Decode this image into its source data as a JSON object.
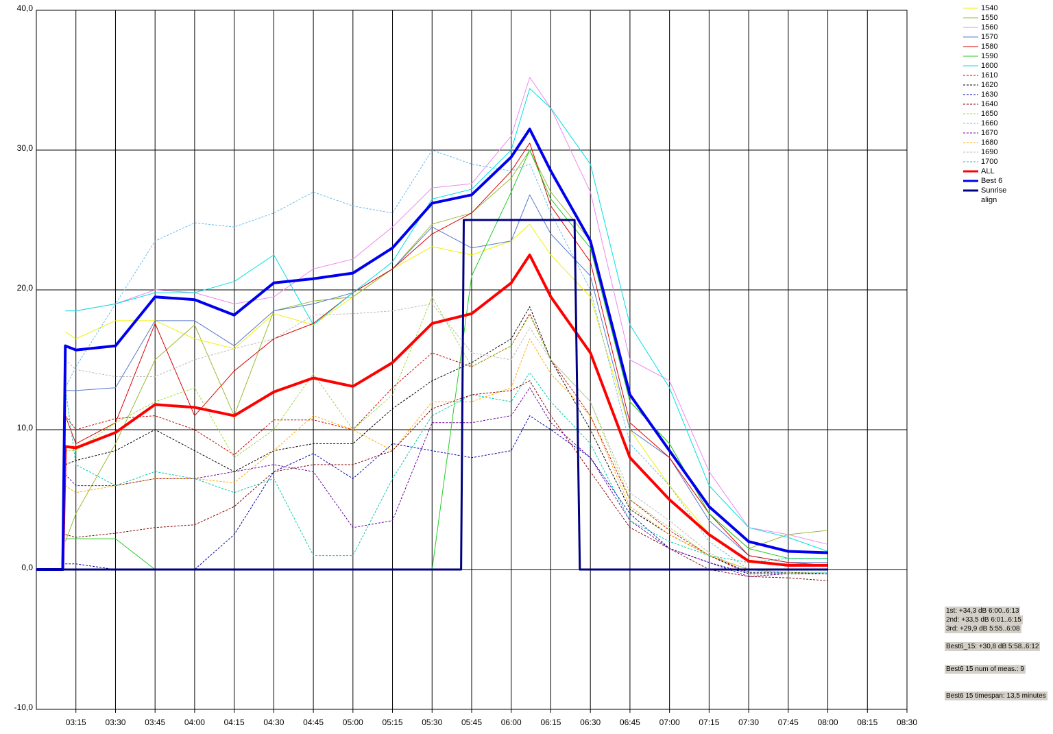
{
  "chart_data": {
    "type": "line",
    "x": [
      "03:00",
      "03:10",
      "03:11",
      "03:15",
      "03:30",
      "03:45",
      "04:00",
      "04:15",
      "04:30",
      "04:45",
      "05:00",
      "05:15",
      "05:30",
      "05:45",
      "06:00",
      "06:07",
      "06:15",
      "06:30",
      "06:45",
      "07:00",
      "07:15",
      "07:30",
      "07:45",
      "08:00"
    ],
    "xlim": [
      "03:00",
      "08:30"
    ],
    "xticks": [
      "03:15",
      "03:30",
      "03:45",
      "04:00",
      "04:15",
      "04:30",
      "04:45",
      "05:00",
      "05:15",
      "05:30",
      "05:45",
      "06:00",
      "06:15",
      "06:30",
      "06:45",
      "07:00",
      "07:15",
      "07:30",
      "07:45",
      "08:00",
      "08:15",
      "08:30"
    ],
    "ylim": [
      -10,
      40
    ],
    "yticks": [
      {
        "value": -10,
        "label": "-10,0"
      },
      {
        "value": 0,
        "label": "0,0"
      },
      {
        "value": 10,
        "label": "10,0"
      },
      {
        "value": 20,
        "label": "20,0"
      },
      {
        "value": 30,
        "label": "30,0"
      },
      {
        "value": 40,
        "label": "40,0"
      }
    ],
    "grid": true,
    "series": [
      {
        "name": "1540",
        "color": "#f0f000",
        "values": [
          null,
          null,
          17,
          16.5,
          17.8,
          17.8,
          16.5,
          15.8,
          18.3,
          17.5,
          19.5,
          21.5,
          23.1,
          22.5,
          23.5,
          24.7,
          22.5,
          19.5,
          10,
          6,
          2.5,
          0.5,
          0.3,
          0.3
        ]
      },
      {
        "name": "1550",
        "color": "#99bb33",
        "values": [
          null,
          null,
          2,
          4,
          9,
          15,
          17.5,
          11,
          18.5,
          19.2,
          19.5,
          21.5,
          24.7,
          25.5,
          28,
          30,
          27,
          23.5,
          12,
          9,
          4,
          1.5,
          2.5,
          2.8
        ]
      },
      {
        "name": "1560",
        "color": "#ee88ee",
        "values": [
          null,
          null,
          18.5,
          18.5,
          19,
          20,
          19.8,
          19,
          19.5,
          21.5,
          22.2,
          24.5,
          27.3,
          27.6,
          31,
          35.2,
          33,
          27,
          15,
          13.5,
          7,
          3,
          2.5,
          1.8
        ]
      },
      {
        "name": "1570",
        "color": "#5577cc",
        "values": [
          null,
          null,
          12.8,
          12.8,
          13,
          17.8,
          17.8,
          16,
          18.5,
          19,
          19.8,
          21.5,
          24.5,
          23,
          23.5,
          26.8,
          24,
          21,
          10,
          8,
          3.5,
          1,
          0.5,
          0.5
        ]
      },
      {
        "name": "1580",
        "color": "#dd0000",
        "values": [
          null,
          null,
          11,
          9,
          10.5,
          17.6,
          11,
          14.2,
          16.5,
          17.6,
          19.8,
          21.5,
          24,
          25.5,
          28.5,
          30.5,
          26,
          22,
          10.5,
          8,
          4,
          1,
          0.5,
          0.3
        ]
      },
      {
        "name": "1590",
        "color": "#22cc22",
        "values": [
          null,
          null,
          2.2,
          2.2,
          2.2,
          0,
          0,
          0,
          0,
          0,
          0,
          0,
          0,
          21,
          27,
          30,
          26.5,
          23,
          12,
          9,
          4,
          1.5,
          0.8,
          0.8
        ]
      },
      {
        "name": "1600",
        "color": "#00e0e0",
        "values": [
          null,
          null,
          18.5,
          18.5,
          19,
          19.8,
          19.8,
          20.6,
          22.5,
          17.5,
          19.8,
          22,
          26.5,
          27.2,
          30,
          34.4,
          33,
          29,
          17.5,
          13,
          6,
          3,
          2.3,
          1.3
        ]
      },
      {
        "name": "1610",
        "color": "#cc0000",
        "dash": true,
        "values": [
          null,
          null,
          11,
          10,
          10.8,
          11,
          10,
          8.2,
          10.7,
          10.7,
          10,
          13,
          15.5,
          14.5,
          16,
          18.3,
          15,
          11,
          5,
          2.8,
          1,
          -0.3,
          -0.3,
          -0.3
        ]
      },
      {
        "name": "1620",
        "color": "#000000",
        "dash": true,
        "values": [
          null,
          null,
          7.5,
          7.8,
          8.5,
          10,
          8.5,
          7,
          8.5,
          9,
          9,
          11.5,
          13.5,
          14.8,
          16.5,
          18.8,
          15,
          10,
          4.3,
          2.5,
          1,
          -0.2,
          -0.2,
          -0.3
        ]
      },
      {
        "name": "1630",
        "color": "#0000aa",
        "dash": true,
        "values": [
          null,
          null,
          0.4,
          0.4,
          0,
          0,
          0,
          2.5,
          7,
          8.3,
          6.5,
          9,
          8.5,
          8,
          8.5,
          11,
          10,
          8,
          4,
          1.5,
          0.5,
          -0.3,
          -0.3,
          -0.3
        ]
      },
      {
        "name": "1640",
        "color": "#880000",
        "dash": true,
        "values": [
          null,
          null,
          2.5,
          2.3,
          2.6,
          3,
          3.2,
          4.5,
          7,
          7.5,
          7.5,
          8.5,
          11.5,
          12.5,
          12.8,
          13.5,
          11,
          7,
          3,
          1.5,
          0,
          -0.5,
          -0.6,
          -0.8
        ]
      },
      {
        "name": "1650",
        "color": "#99dd33",
        "dash": true,
        "values": [
          null,
          null,
          8.5,
          8.5,
          10.5,
          12,
          13,
          8,
          10,
          14,
          10,
          12.5,
          19.5,
          14.5,
          16,
          18.2,
          15,
          12,
          5,
          3,
          1,
          0,
          -0.2,
          -0.2
        ]
      },
      {
        "name": "1660",
        "color": "#66bbee",
        "dash": true,
        "values": [
          null,
          null,
          13,
          14.5,
          19,
          23.5,
          24.8,
          24.5,
          25.5,
          27,
          26,
          25.5,
          30,
          29,
          28.5,
          29,
          25.5,
          20,
          9,
          6,
          2,
          0,
          -0.3,
          -0.2
        ]
      },
      {
        "name": "1670",
        "color": "#660099",
        "dash": true,
        "values": [
          null,
          null,
          6.8,
          6,
          6,
          6.5,
          6.5,
          7,
          7.5,
          7,
          3,
          3.5,
          10.5,
          10.5,
          11,
          13,
          10.5,
          8,
          3.5,
          1.5,
          0.5,
          -0.5,
          -0.3,
          -0.3
        ]
      },
      {
        "name": "1680",
        "color": "#ffaa00",
        "dash": true,
        "values": [
          null,
          null,
          6,
          5.5,
          6,
          6.5,
          6.5,
          6.2,
          8.5,
          11,
          10,
          8.5,
          12,
          12,
          13,
          16.5,
          14,
          11,
          4.5,
          2.5,
          1,
          0,
          0,
          0
        ]
      },
      {
        "name": "1690",
        "color": "#bbbbbb",
        "dash": true,
        "values": [
          null,
          null,
          15,
          14.3,
          13.8,
          13.8,
          15,
          15.8,
          16.5,
          18.2,
          18.3,
          18.5,
          19,
          15.5,
          15,
          17.3,
          15,
          12,
          5.5,
          3.5,
          1.2,
          -0.3,
          -0.3,
          -0.3
        ]
      },
      {
        "name": "1700",
        "color": "#00ccaa",
        "dash": true,
        "values": [
          null,
          null,
          13,
          7.5,
          6,
          7,
          6.5,
          5.5,
          6.5,
          1,
          1,
          6.5,
          11,
          12.5,
          12,
          14.1,
          12,
          9,
          3.5,
          2,
          1,
          0.5,
          0.8,
          0.8
        ]
      },
      {
        "name": "ALL",
        "color": "#ff0000",
        "line_width": 4,
        "values": [
          0,
          0,
          8.8,
          8.7,
          9.8,
          11.8,
          11.6,
          11,
          12.7,
          13.7,
          13.1,
          14.8,
          17.6,
          18.3,
          20.5,
          22.5,
          19.5,
          15.5,
          8,
          5,
          2.5,
          0.6,
          0.3,
          0.3
        ]
      },
      {
        "name": "Best 6",
        "color": "#0000ee",
        "line_width": 4,
        "values": [
          0,
          0,
          16,
          15.7,
          16,
          19.5,
          19.3,
          18.2,
          20.5,
          20.8,
          21.2,
          23,
          26.2,
          26.8,
          29.5,
          31.5,
          28.5,
          23.5,
          12.5,
          8.5,
          4.5,
          2,
          1.3,
          1.2
        ]
      },
      {
        "name": "Sunrise align",
        "color": "#000080",
        "line_width": 3,
        "x": [
          "03:00",
          "05:41",
          "05:42",
          "06:24",
          "06:26",
          "08:00"
        ],
        "values": [
          0,
          0,
          25,
          25,
          0,
          0
        ]
      }
    ],
    "annotations": [
      "1st: +34,3 dB 6:00..6:13",
      "2nd: +33,5 dB 6:01..6:15",
      "3rd: +29,9 dB 5:55..6:08",
      "Best6_15: +30,8 dB 5:58..6:12",
      "Best6 15 num of meas.: 9",
      "Best6 15 timespan: 13,5 minutes"
    ]
  }
}
